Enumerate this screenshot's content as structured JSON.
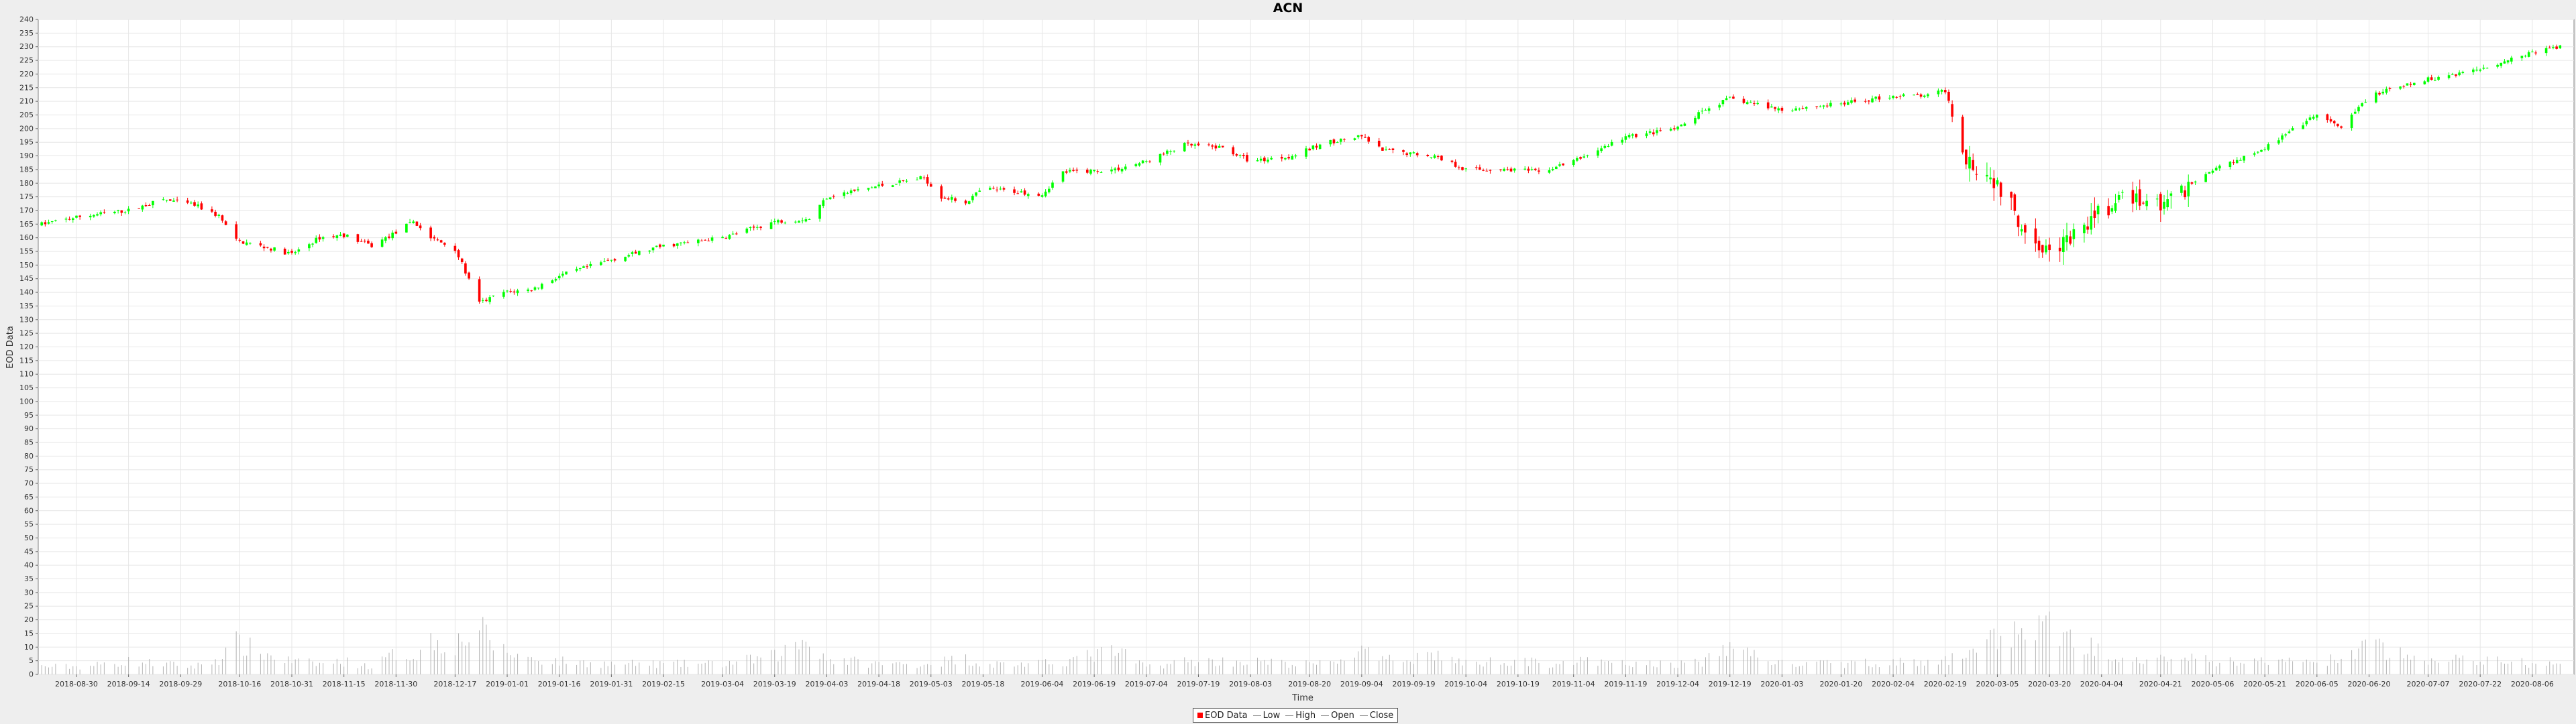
{
  "chart_data": {
    "type": "candlestick",
    "title": "ACN",
    "xlabel": "Time",
    "ylabel": "EOD Data",
    "ylim": [
      0,
      240
    ],
    "ytick_step": 5,
    "x_range": [
      "2018-08-19",
      "2020-08-18"
    ],
    "x_ticks": [
      "2018-08-30",
      "2018-09-14",
      "2018-09-29",
      "2018-10-16",
      "2018-10-31",
      "2018-11-15",
      "2018-11-30",
      "2018-12-17",
      "2019-01-01",
      "2019-01-16",
      "2019-01-31",
      "2019-02-15",
      "2019-03-04",
      "2019-03-19",
      "2019-04-03",
      "2019-04-18",
      "2019-05-03",
      "2019-05-18",
      "2019-06-04",
      "2019-06-19",
      "2019-07-04",
      "2019-07-19",
      "2019-08-03",
      "2019-08-20",
      "2019-09-04",
      "2019-09-19",
      "2019-10-04",
      "2019-10-19",
      "2019-11-04",
      "2019-11-19",
      "2019-12-04",
      "2019-12-19",
      "2020-01-03",
      "2020-01-20",
      "2020-02-04",
      "2020-02-19",
      "2020-03-05",
      "2020-03-20",
      "2020-04-04",
      "2020-04-21",
      "2020-05-06",
      "2020-05-21",
      "2020-06-05",
      "2020-06-20",
      "2020-07-07",
      "2020-07-22",
      "2020-08-06"
    ],
    "grid": true,
    "legend_position": "bottom-center",
    "legend": [
      "EOD Data",
      "Low",
      "High",
      "Open",
      "Close"
    ],
    "colors": {
      "up": "#00ff00",
      "down": "#ff0000",
      "volume": "#b4b4b4",
      "grid": "#e6e6e6",
      "plot_bg": "#ffffff"
    },
    "series": {
      "close": [
        {
          "date": "2018-08-20",
          "value": 165
        },
        {
          "date": "2018-09-01",
          "value": 168
        },
        {
          "date": "2018-09-14",
          "value": 170
        },
        {
          "date": "2018-09-24",
          "value": 174
        },
        {
          "date": "2018-10-03",
          "value": 172
        },
        {
          "date": "2018-10-10",
          "value": 168
        },
        {
          "date": "2018-10-15",
          "value": 159
        },
        {
          "date": "2018-10-25",
          "value": 156
        },
        {
          "date": "2018-10-31",
          "value": 154
        },
        {
          "date": "2018-11-08",
          "value": 160
        },
        {
          "date": "2018-11-15",
          "value": 161
        },
        {
          "date": "2018-11-23",
          "value": 157
        },
        {
          "date": "2018-11-30",
          "value": 162
        },
        {
          "date": "2018-12-05",
          "value": 166
        },
        {
          "date": "2018-12-10",
          "value": 160
        },
        {
          "date": "2018-12-17",
          "value": 156
        },
        {
          "date": "2018-12-24",
          "value": 136
        },
        {
          "date": "2018-12-31",
          "value": 140
        },
        {
          "date": "2019-01-08",
          "value": 141
        },
        {
          "date": "2019-01-16",
          "value": 146
        },
        {
          "date": "2019-01-31",
          "value": 152
        },
        {
          "date": "2019-02-15",
          "value": 157
        },
        {
          "date": "2019-03-04",
          "value": 160
        },
        {
          "date": "2019-03-19",
          "value": 166
        },
        {
          "date": "2019-03-29",
          "value": 167
        },
        {
          "date": "2019-04-03",
          "value": 175
        },
        {
          "date": "2019-04-18",
          "value": 179
        },
        {
          "date": "2019-05-01",
          "value": 182
        },
        {
          "date": "2019-05-06",
          "value": 175
        },
        {
          "date": "2019-05-13",
          "value": 173
        },
        {
          "date": "2019-05-18",
          "value": 178
        },
        {
          "date": "2019-06-04",
          "value": 176
        },
        {
          "date": "2019-06-10",
          "value": 184
        },
        {
          "date": "2019-06-25",
          "value": 185
        },
        {
          "date": "2019-07-04",
          "value": 188
        },
        {
          "date": "2019-07-15",
          "value": 194
        },
        {
          "date": "2019-07-26",
          "value": 193
        },
        {
          "date": "2019-08-03",
          "value": 188
        },
        {
          "date": "2019-08-15",
          "value": 190
        },
        {
          "date": "2019-08-25",
          "value": 195
        },
        {
          "date": "2019-09-04",
          "value": 197
        },
        {
          "date": "2019-09-10",
          "value": 192
        },
        {
          "date": "2019-09-25",
          "value": 190
        },
        {
          "date": "2019-10-04",
          "value": 185
        },
        {
          "date": "2019-10-19",
          "value": 185
        },
        {
          "date": "2019-10-25",
          "value": 184
        },
        {
          "date": "2019-11-04",
          "value": 188
        },
        {
          "date": "2019-11-19",
          "value": 197
        },
        {
          "date": "2019-12-04",
          "value": 200
        },
        {
          "date": "2019-12-12",
          "value": 207
        },
        {
          "date": "2019-12-19",
          "value": 211
        },
        {
          "date": "2020-01-03",
          "value": 207
        },
        {
          "date": "2020-01-20",
          "value": 209
        },
        {
          "date": "2020-02-04",
          "value": 212
        },
        {
          "date": "2020-02-14",
          "value": 212
        },
        {
          "date": "2020-02-19",
          "value": 214
        },
        {
          "date": "2020-02-25",
          "value": 190
        },
        {
          "date": "2020-03-05",
          "value": 180
        },
        {
          "date": "2020-03-12",
          "value": 165
        },
        {
          "date": "2020-03-20",
          "value": 155
        },
        {
          "date": "2020-03-27",
          "value": 160
        },
        {
          "date": "2020-04-04",
          "value": 170
        },
        {
          "date": "2020-04-13",
          "value": 175
        },
        {
          "date": "2020-04-21",
          "value": 172
        },
        {
          "date": "2020-05-06",
          "value": 185
        },
        {
          "date": "2020-05-21",
          "value": 193
        },
        {
          "date": "2020-06-05",
          "value": 205
        },
        {
          "date": "2020-06-12",
          "value": 200
        },
        {
          "date": "2020-06-20",
          "value": 212
        },
        {
          "date": "2020-07-07",
          "value": 218
        },
        {
          "date": "2020-07-22",
          "value": 222
        },
        {
          "date": "2020-08-06",
          "value": 228
        },
        {
          "date": "2020-08-14",
          "value": 230
        }
      ],
      "volume": [
        {
          "date": "2018-08-20",
          "value": 3
        },
        {
          "date": "2018-09-01",
          "value": 3
        },
        {
          "date": "2018-09-14",
          "value": 5
        },
        {
          "date": "2018-09-24",
          "value": 4
        },
        {
          "date": "2018-10-03",
          "value": 3
        },
        {
          "date": "2018-10-10",
          "value": 6
        },
        {
          "date": "2018-10-15",
          "value": 12
        },
        {
          "date": "2018-10-25",
          "value": 7
        },
        {
          "date": "2018-10-31",
          "value": 5
        },
        {
          "date": "2018-11-08",
          "value": 4
        },
        {
          "date": "2018-11-15",
          "value": 5
        },
        {
          "date": "2018-11-23",
          "value": 3
        },
        {
          "date": "2018-11-30",
          "value": 8
        },
        {
          "date": "2018-12-05",
          "value": 7
        },
        {
          "date": "2018-12-10",
          "value": 13
        },
        {
          "date": "2018-12-17",
          "value": 12
        },
        {
          "date": "2018-12-24",
          "value": 17
        },
        {
          "date": "2018-12-31",
          "value": 9
        },
        {
          "date": "2019-01-08",
          "value": 6
        },
        {
          "date": "2019-01-16",
          "value": 5
        },
        {
          "date": "2019-01-31",
          "value": 4
        },
        {
          "date": "2019-02-15",
          "value": 4
        },
        {
          "date": "2019-03-04",
          "value": 4
        },
        {
          "date": "2019-03-19",
          "value": 7
        },
        {
          "date": "2019-03-29",
          "value": 14
        },
        {
          "date": "2019-04-03",
          "value": 6
        },
        {
          "date": "2019-04-18",
          "value": 4
        },
        {
          "date": "2019-05-01",
          "value": 4
        },
        {
          "date": "2019-05-06",
          "value": 5
        },
        {
          "date": "2019-05-13",
          "value": 6
        },
        {
          "date": "2019-05-18",
          "value": 4
        },
        {
          "date": "2019-06-04",
          "value": 4
        },
        {
          "date": "2019-06-10",
          "value": 5
        },
        {
          "date": "2019-06-25",
          "value": 9
        },
        {
          "date": "2019-07-04",
          "value": 3
        },
        {
          "date": "2019-07-15",
          "value": 5
        },
        {
          "date": "2019-07-26",
          "value": 5
        },
        {
          "date": "2019-08-03",
          "value": 5
        },
        {
          "date": "2019-08-15",
          "value": 4
        },
        {
          "date": "2019-08-25",
          "value": 4
        },
        {
          "date": "2019-09-04",
          "value": 9
        },
        {
          "date": "2019-09-10",
          "value": 5
        },
        {
          "date": "2019-09-25",
          "value": 8
        },
        {
          "date": "2019-10-04",
          "value": 4
        },
        {
          "date": "2019-10-19",
          "value": 6
        },
        {
          "date": "2019-10-25",
          "value": 4
        },
        {
          "date": "2019-11-04",
          "value": 5
        },
        {
          "date": "2019-11-19",
          "value": 4
        },
        {
          "date": "2019-12-04",
          "value": 4
        },
        {
          "date": "2019-12-12",
          "value": 5
        },
        {
          "date": "2019-12-19",
          "value": 11
        },
        {
          "date": "2020-01-03",
          "value": 4
        },
        {
          "date": "2020-01-20",
          "value": 4
        },
        {
          "date": "2020-02-04",
          "value": 5
        },
        {
          "date": "2020-02-14",
          "value": 4
        },
        {
          "date": "2020-02-19",
          "value": 5
        },
        {
          "date": "2020-02-25",
          "value": 9
        },
        {
          "date": "2020-03-05",
          "value": 14
        },
        {
          "date": "2020-03-12",
          "value": 17
        },
        {
          "date": "2020-03-20",
          "value": 18
        },
        {
          "date": "2020-03-27",
          "value": 13
        },
        {
          "date": "2020-04-04",
          "value": 9
        },
        {
          "date": "2020-04-13",
          "value": 7
        },
        {
          "date": "2020-04-21",
          "value": 7
        },
        {
          "date": "2020-05-06",
          "value": 5
        },
        {
          "date": "2020-05-21",
          "value": 5
        },
        {
          "date": "2020-06-05",
          "value": 5
        },
        {
          "date": "2020-06-12",
          "value": 6
        },
        {
          "date": "2020-06-20",
          "value": 11
        },
        {
          "date": "2020-07-07",
          "value": 5
        },
        {
          "date": "2020-07-22",
          "value": 6
        },
        {
          "date": "2020-08-06",
          "value": 4
        },
        {
          "date": "2020-08-14",
          "value": 4
        }
      ]
    }
  }
}
